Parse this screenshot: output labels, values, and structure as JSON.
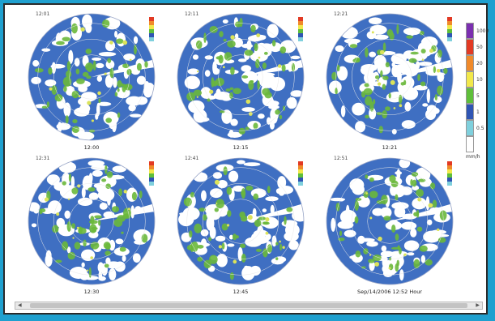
{
  "panels": [
    {
      "clock": "12:01",
      "caption": "12:00"
    },
    {
      "clock": "12:11",
      "caption": "12:15"
    },
    {
      "clock": "12:21",
      "caption": "12:21"
    },
    {
      "clock": "12:31",
      "caption": "12:30"
    },
    {
      "clock": "12:41",
      "caption": "12:45"
    },
    {
      "clock": "12:51",
      "caption": "Sep/14/2006 12:52 Hour"
    }
  ],
  "legend": {
    "items": [
      {
        "label": "1000",
        "color": "#7b2fb0"
      },
      {
        "label": "50",
        "color": "#e23a24"
      },
      {
        "label": "20",
        "color": "#f08a2a"
      },
      {
        "label": "10",
        "color": "#f2e84a"
      },
      {
        "label": "5",
        "color": "#5fbf3a"
      },
      {
        "label": "1",
        "color": "#2f55b4"
      },
      {
        "label": "0.5",
        "color": "#7fd0dd"
      },
      {
        "label": "",
        "color": "#ffffff"
      }
    ],
    "unit": "mm/h"
  },
  "colors": {
    "background": "#1fa0cf",
    "radar_base": "#3f6fc2",
    "radar_green": "#6ab83b",
    "radar_yellow": "#dbe35a"
  }
}
